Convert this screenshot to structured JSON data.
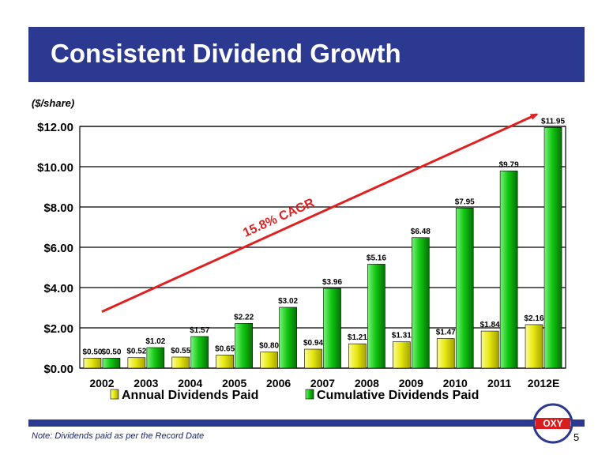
{
  "header": {
    "title": "Consistent Dividend Growth"
  },
  "unit_label": "($/share)",
  "footer": {
    "note": "Note: Dividends paid as per the Record Date",
    "page": "5"
  },
  "logo": {
    "text": "OXY"
  },
  "colors": {
    "title_bar": "#2b3991",
    "annual": "#e8e812",
    "cumulative": "#12c812",
    "arrow": "#e02020"
  },
  "chart_data": {
    "type": "bar",
    "title": "",
    "xlabel": "",
    "ylabel": "($/share)",
    "categories": [
      "2002",
      "2003",
      "2004",
      "2005",
      "2006",
      "2007",
      "2008",
      "2009",
      "2010",
      "2011",
      "2012E"
    ],
    "series": [
      {
        "name": "Annual Dividends Paid",
        "values": [
          0.5,
          0.52,
          0.55,
          0.65,
          0.8,
          0.94,
          1.21,
          1.31,
          1.47,
          1.84,
          2.16
        ],
        "labels": [
          "$0.50",
          "$0.52",
          "$0.55",
          "$0.65",
          "$0.80",
          "$0.94",
          "$1.21",
          "$1.31",
          "$1.47",
          "$1.84",
          "$2.16"
        ]
      },
      {
        "name": "Cumulative Dividends Paid",
        "values": [
          0.5,
          1.02,
          1.57,
          2.22,
          3.02,
          3.96,
          5.16,
          6.48,
          7.95,
          9.79,
          11.95
        ],
        "labels": [
          "$0.50",
          "$1.02",
          "$1.57",
          "$2.22",
          "$3.02",
          "$3.96",
          "$5.16",
          "$6.48",
          "$7.95",
          "$9.79",
          "$11.95"
        ]
      }
    ],
    "ylim": [
      0,
      12
    ],
    "yticks": [
      0,
      2,
      4,
      6,
      8,
      10,
      12
    ],
    "ytick_labels": [
      "$0.00",
      "$2.00",
      "$4.00",
      "$6.00",
      "$8.00",
      "$10.00",
      "$12.00"
    ],
    "grid": true,
    "legend_position": "bottom",
    "annotation": {
      "text": "15.8% CAGR"
    }
  }
}
